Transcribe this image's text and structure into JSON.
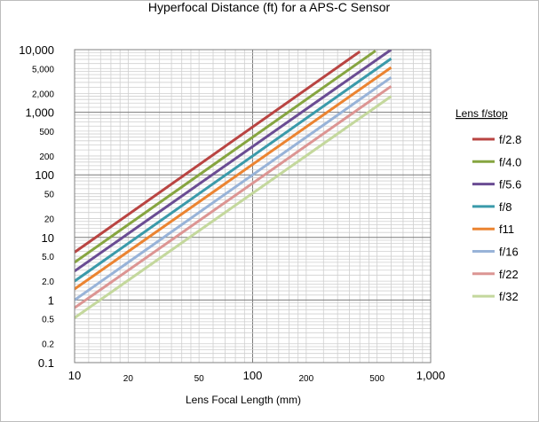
{
  "chart_data": {
    "type": "line",
    "title": "Hyperfocal Distance (ft) for a APS-C Sensor",
    "xlabel": "Lens Focal Length (mm)",
    "ylabel": "",
    "xscale": "log",
    "yscale": "log",
    "xlim": [
      10,
      1000
    ],
    "ylim": [
      0.1,
      10000
    ],
    "grid": true,
    "legend_title": "Lens f/stop",
    "legend_position": "right",
    "x_tick_labels": [
      {
        "value": 10,
        "label": "10",
        "major": true
      },
      {
        "value": 20,
        "label": "20",
        "major": false
      },
      {
        "value": 50,
        "label": "50",
        "major": false
      },
      {
        "value": 100,
        "label": "100",
        "major": true
      },
      {
        "value": 200,
        "label": "200",
        "major": false
      },
      {
        "value": 500,
        "label": "500",
        "major": false
      },
      {
        "value": 1000,
        "label": "1,000",
        "major": true
      }
    ],
    "y_tick_labels": [
      {
        "value": 0.1,
        "label": "0.1",
        "major": true
      },
      {
        "value": 0.2,
        "label": "0.2",
        "major": false
      },
      {
        "value": 0.5,
        "label": "0.5",
        "major": false
      },
      {
        "value": 1,
        "label": "1",
        "major": true
      },
      {
        "value": 2,
        "label": "2.0",
        "major": false
      },
      {
        "value": 5,
        "label": "5.0",
        "major": false
      },
      {
        "value": 10,
        "label": "10",
        "major": true
      },
      {
        "value": 20,
        "label": "20",
        "major": false
      },
      {
        "value": 50,
        "label": "50",
        "major": false
      },
      {
        "value": 100,
        "label": "100",
        "major": true
      },
      {
        "value": 200,
        "label": "200",
        "major": false
      },
      {
        "value": 500,
        "label": "500",
        "major": false
      },
      {
        "value": 1000,
        "label": "1,000",
        "major": true
      },
      {
        "value": 2000,
        "label": "2,000",
        "major": false
      },
      {
        "value": 5000,
        "label": "5,000",
        "major": false
      },
      {
        "value": 10000,
        "label": "10,000",
        "major": true
      }
    ],
    "series": [
      {
        "name": "f/2.8",
        "color": "#b94442",
        "x": [
          10,
          400
        ],
        "y": [
          5.8,
          9300
        ]
      },
      {
        "name": "f/4.0",
        "color": "#86a540",
        "x": [
          10,
          490
        ],
        "y": [
          4.0,
          9600
        ]
      },
      {
        "name": "f/5.6",
        "color": "#6a4c93",
        "x": [
          10,
          600
        ],
        "y": [
          2.9,
          10000
        ]
      },
      {
        "name": "f/8",
        "color": "#3a9aaa",
        "x": [
          10,
          600
        ],
        "y": [
          2.0,
          7200
        ]
      },
      {
        "name": "f11",
        "color": "#eb8431",
        "x": [
          10,
          600
        ],
        "y": [
          1.5,
          5200
        ]
      },
      {
        "name": "f/16",
        "color": "#98b3d8",
        "x": [
          10,
          600
        ],
        "y": [
          1.0,
          3600
        ]
      },
      {
        "name": "f/22",
        "color": "#dc9593",
        "x": [
          10,
          600
        ],
        "y": [
          0.75,
          2600
        ]
      },
      {
        "name": "f/32",
        "color": "#c4d89d",
        "x": [
          10,
          600
        ],
        "y": [
          0.52,
          1800
        ]
      }
    ]
  }
}
